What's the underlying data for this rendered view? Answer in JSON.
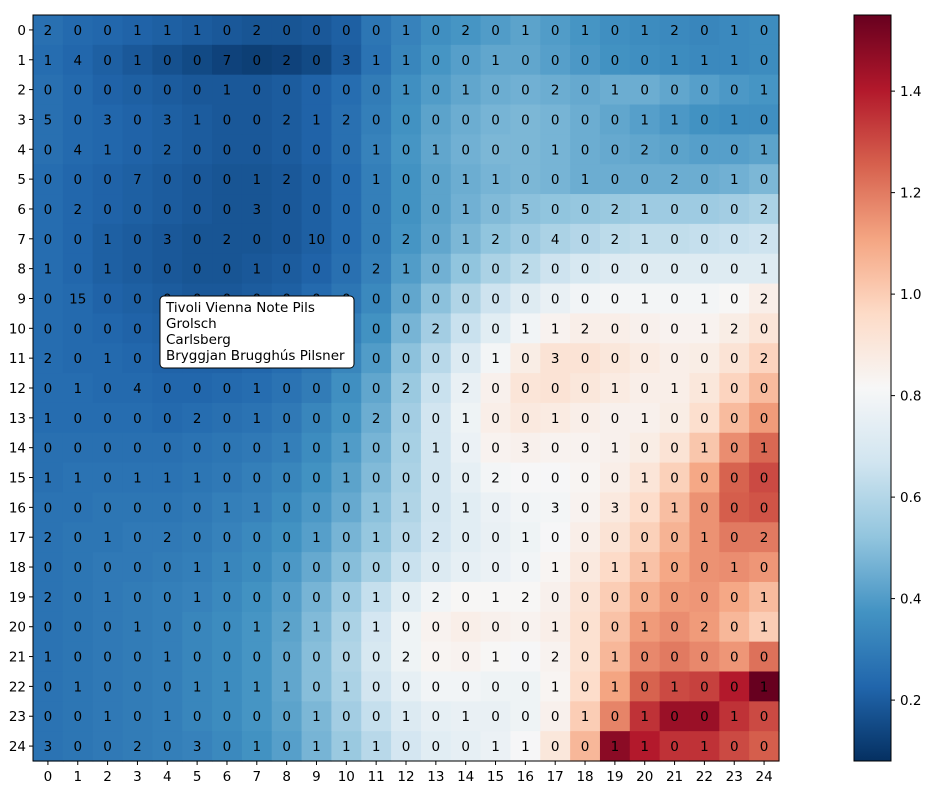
{
  "chart_data": {
    "type": "heatmap",
    "title": "",
    "xlabel": "",
    "ylabel": "",
    "x_ticks": [
      "0",
      "1",
      "2",
      "3",
      "4",
      "5",
      "6",
      "7",
      "8",
      "9",
      "10",
      "11",
      "12",
      "13",
      "14",
      "15",
      "16",
      "17",
      "18",
      "19",
      "20",
      "21",
      "22",
      "23",
      "24"
    ],
    "y_ticks": [
      "0",
      "1",
      "2",
      "3",
      "4",
      "5",
      "6",
      "7",
      "8",
      "9",
      "10",
      "11",
      "12",
      "13",
      "14",
      "15",
      "16",
      "17",
      "18",
      "19",
      "20",
      "21",
      "22",
      "23",
      "24"
    ],
    "colormap": "RdBu_r",
    "colorbar": {
      "vmin": 0.08,
      "vmax": 1.55,
      "ticks": [
        "0.2",
        "0.4",
        "0.6",
        "0.8",
        "1.0",
        "1.2",
        "1.4"
      ],
      "tick_values": [
        0.2,
        0.4,
        0.6,
        0.8,
        1.0,
        1.2,
        1.4
      ]
    },
    "cell_labels": [
      [
        2,
        0,
        0,
        1,
        1,
        1,
        0,
        2,
        0,
        0,
        0,
        0,
        1,
        0,
        2,
        0,
        1,
        0,
        1,
        0,
        1,
        2,
        0,
        1,
        0
      ],
      [
        1,
        4,
        0,
        1,
        0,
        0,
        7,
        0,
        2,
        0,
        3,
        1,
        1,
        0,
        0,
        1,
        0,
        0,
        0,
        0,
        0,
        1,
        1,
        1,
        0
      ],
      [
        0,
        0,
        0,
        0,
        0,
        0,
        1,
        0,
        0,
        0,
        0,
        0,
        1,
        0,
        1,
        0,
        0,
        2,
        0,
        1,
        0,
        0,
        0,
        0,
        1
      ],
      [
        5,
        0,
        3,
        0,
        3,
        1,
        0,
        0,
        2,
        1,
        2,
        0,
        0,
        0,
        0,
        0,
        0,
        0,
        0,
        0,
        1,
        1,
        0,
        1,
        0
      ],
      [
        0,
        4,
        1,
        0,
        2,
        0,
        0,
        0,
        0,
        0,
        0,
        1,
        0,
        1,
        0,
        0,
        0,
        1,
        0,
        0,
        2,
        0,
        0,
        0,
        1
      ],
      [
        0,
        0,
        0,
        7,
        0,
        0,
        0,
        1,
        2,
        0,
        0,
        1,
        0,
        0,
        1,
        1,
        0,
        0,
        1,
        0,
        0,
        2,
        0,
        1,
        0
      ],
      [
        0,
        2,
        0,
        0,
        0,
        0,
        0,
        3,
        0,
        0,
        0,
        0,
        0,
        0,
        1,
        0,
        5,
        0,
        0,
        2,
        1,
        0,
        0,
        0,
        2
      ],
      [
        0,
        0,
        1,
        0,
        3,
        0,
        2,
        0,
        0,
        10,
        0,
        0,
        2,
        0,
        1,
        2,
        0,
        4,
        0,
        2,
        1,
        0,
        0,
        0,
        2
      ],
      [
        1,
        0,
        1,
        0,
        0,
        0,
        0,
        1,
        0,
        0,
        0,
        2,
        1,
        0,
        0,
        0,
        2,
        0,
        0,
        0,
        0,
        0,
        0,
        0,
        1
      ],
      [
        0,
        15,
        0,
        0,
        0,
        0,
        0,
        0,
        0,
        0,
        0,
        0,
        0,
        0,
        0,
        0,
        0,
        0,
        0,
        0,
        1,
        0,
        1,
        0,
        2
      ],
      [
        0,
        0,
        0,
        0,
        0,
        0,
        0,
        0,
        0,
        0,
        0,
        0,
        0,
        2,
        0,
        0,
        1,
        1,
        2,
        0,
        0,
        0,
        1,
        2,
        0
      ],
      [
        2,
        0,
        1,
        0,
        0,
        0,
        0,
        0,
        0,
        0,
        0,
        0,
        0,
        0,
        0,
        1,
        0,
        3,
        0,
        0,
        0,
        0,
        0,
        0,
        2
      ],
      [
        0,
        1,
        0,
        4,
        0,
        0,
        0,
        1,
        0,
        0,
        0,
        0,
        2,
        0,
        2,
        0,
        0,
        0,
        0,
        1,
        0,
        1,
        1,
        0,
        0
      ],
      [
        1,
        0,
        0,
        0,
        0,
        2,
        0,
        1,
        0,
        0,
        0,
        2,
        0,
        0,
        1,
        0,
        0,
        1,
        0,
        0,
        1,
        0,
        0,
        0,
        0
      ],
      [
        0,
        0,
        0,
        0,
        0,
        0,
        0,
        0,
        1,
        0,
        1,
        0,
        0,
        1,
        0,
        0,
        3,
        0,
        0,
        1,
        0,
        0,
        1,
        0,
        1
      ],
      [
        1,
        1,
        0,
        1,
        1,
        1,
        0,
        0,
        0,
        0,
        1,
        0,
        0,
        0,
        0,
        2,
        0,
        0,
        0,
        0,
        1,
        0,
        0,
        0,
        0
      ],
      [
        0,
        0,
        0,
        0,
        0,
        0,
        1,
        1,
        0,
        0,
        0,
        1,
        1,
        0,
        1,
        0,
        0,
        3,
        0,
        3,
        0,
        1,
        0,
        0,
        0
      ],
      [
        2,
        0,
        1,
        0,
        2,
        0,
        0,
        0,
        0,
        1,
        0,
        1,
        0,
        2,
        0,
        0,
        1,
        0,
        0,
        0,
        0,
        0,
        1,
        0,
        2
      ],
      [
        0,
        0,
        0,
        0,
        0,
        1,
        1,
        0,
        0,
        0,
        0,
        0,
        0,
        0,
        0,
        0,
        0,
        1,
        0,
        1,
        1,
        0,
        0,
        1,
        0
      ],
      [
        2,
        0,
        1,
        0,
        0,
        1,
        0,
        0,
        0,
        0,
        0,
        1,
        0,
        2,
        0,
        1,
        2,
        0,
        0,
        0,
        0,
        0,
        0,
        0,
        1
      ],
      [
        0,
        0,
        0,
        1,
        0,
        0,
        0,
        1,
        2,
        1,
        0,
        1,
        0,
        0,
        0,
        0,
        0,
        1,
        0,
        0,
        1,
        0,
        2,
        0,
        1
      ],
      [
        1,
        0,
        0,
        0,
        1,
        0,
        0,
        0,
        0,
        0,
        0,
        0,
        2,
        0,
        0,
        1,
        0,
        2,
        0,
        1,
        0,
        0,
        0,
        0,
        0
      ],
      [
        0,
        1,
        0,
        0,
        0,
        1,
        1,
        1,
        1,
        0,
        1,
        0,
        0,
        0,
        0,
        0,
        0,
        1,
        0,
        1,
        0,
        1,
        0,
        0,
        1
      ],
      [
        0,
        0,
        1,
        0,
        1,
        0,
        0,
        0,
        0,
        1,
        0,
        0,
        1,
        0,
        1,
        0,
        0,
        0,
        1,
        0,
        1,
        0,
        0,
        1,
        0
      ],
      [
        3,
        0,
        0,
        2,
        0,
        3,
        0,
        1,
        0,
        1,
        1,
        1,
        0,
        0,
        0,
        1,
        1,
        0,
        0,
        1,
        1,
        0,
        1,
        0,
        0
      ]
    ],
    "color_values": [
      [
        0.26,
        0.24,
        0.23,
        0.22,
        0.21,
        0.2,
        0.19,
        0.18,
        0.18,
        0.19,
        0.21,
        0.28,
        0.32,
        0.36,
        0.38,
        0.4,
        0.42,
        0.4,
        0.38,
        0.36,
        0.35,
        0.34,
        0.33,
        0.34,
        0.35
      ],
      [
        0.25,
        0.23,
        0.21,
        0.19,
        0.17,
        0.15,
        0.13,
        0.12,
        0.13,
        0.15,
        0.2,
        0.27,
        0.33,
        0.38,
        0.41,
        0.43,
        0.43,
        0.41,
        0.39,
        0.37,
        0.36,
        0.35,
        0.34,
        0.34,
        0.35
      ],
      [
        0.26,
        0.24,
        0.22,
        0.21,
        0.2,
        0.19,
        0.19,
        0.19,
        0.2,
        0.22,
        0.25,
        0.3,
        0.36,
        0.4,
        0.43,
        0.45,
        0.46,
        0.45,
        0.44,
        0.45,
        0.45,
        0.43,
        0.41,
        0.39,
        0.38
      ],
      [
        0.26,
        0.24,
        0.23,
        0.22,
        0.21,
        0.2,
        0.19,
        0.19,
        0.2,
        0.22,
        0.26,
        0.31,
        0.37,
        0.42,
        0.45,
        0.47,
        0.48,
        0.47,
        0.45,
        0.43,
        0.41,
        0.39,
        0.37,
        0.36,
        0.36
      ],
      [
        0.26,
        0.24,
        0.23,
        0.22,
        0.21,
        0.2,
        0.19,
        0.19,
        0.2,
        0.22,
        0.26,
        0.32,
        0.38,
        0.43,
        0.46,
        0.48,
        0.48,
        0.47,
        0.45,
        0.44,
        0.43,
        0.42,
        0.41,
        0.41,
        0.42
      ],
      [
        0.25,
        0.23,
        0.22,
        0.21,
        0.2,
        0.19,
        0.18,
        0.18,
        0.19,
        0.21,
        0.25,
        0.31,
        0.37,
        0.42,
        0.45,
        0.47,
        0.48,
        0.47,
        0.45,
        0.45,
        0.45,
        0.45,
        0.45,
        0.46,
        0.48
      ],
      [
        0.25,
        0.23,
        0.22,
        0.21,
        0.2,
        0.19,
        0.18,
        0.18,
        0.19,
        0.21,
        0.25,
        0.31,
        0.37,
        0.42,
        0.46,
        0.49,
        0.51,
        0.52,
        0.53,
        0.54,
        0.55,
        0.55,
        0.55,
        0.56,
        0.58
      ],
      [
        0.25,
        0.23,
        0.21,
        0.2,
        0.19,
        0.18,
        0.18,
        0.18,
        0.19,
        0.21,
        0.25,
        0.31,
        0.38,
        0.43,
        0.48,
        0.52,
        0.55,
        0.58,
        0.6,
        0.62,
        0.63,
        0.63,
        0.64,
        0.65,
        0.66
      ],
      [
        0.25,
        0.23,
        0.21,
        0.2,
        0.19,
        0.18,
        0.18,
        0.19,
        0.2,
        0.22,
        0.26,
        0.32,
        0.4,
        0.46,
        0.52,
        0.58,
        0.62,
        0.66,
        0.69,
        0.71,
        0.72,
        0.72,
        0.72,
        0.72,
        0.72
      ],
      [
        0.25,
        0.24,
        0.22,
        0.21,
        0.2,
        0.19,
        0.19,
        0.2,
        0.21,
        0.24,
        0.28,
        0.34,
        0.43,
        0.51,
        0.59,
        0.66,
        0.72,
        0.76,
        0.79,
        0.8,
        0.8,
        0.8,
        0.8,
        0.82,
        0.86
      ],
      [
        0.25,
        0.24,
        0.23,
        0.22,
        0.21,
        0.2,
        0.2,
        0.21,
        0.23,
        0.26,
        0.31,
        0.37,
        0.47,
        0.56,
        0.65,
        0.73,
        0.79,
        0.84,
        0.86,
        0.86,
        0.85,
        0.84,
        0.84,
        0.87,
        0.91
      ],
      [
        0.25,
        0.24,
        0.24,
        0.23,
        0.22,
        0.22,
        0.22,
        0.23,
        0.25,
        0.28,
        0.33,
        0.4,
        0.51,
        0.61,
        0.71,
        0.8,
        0.87,
        0.92,
        0.92,
        0.9,
        0.88,
        0.86,
        0.87,
        0.92,
        0.98
      ],
      [
        0.25,
        0.25,
        0.24,
        0.24,
        0.23,
        0.23,
        0.24,
        0.25,
        0.27,
        0.3,
        0.36,
        0.43,
        0.54,
        0.65,
        0.76,
        0.85,
        0.91,
        0.92,
        0.9,
        0.88,
        0.86,
        0.86,
        0.9,
        0.98,
        1.05
      ],
      [
        0.25,
        0.25,
        0.25,
        0.25,
        0.24,
        0.25,
        0.26,
        0.27,
        0.29,
        0.33,
        0.38,
        0.45,
        0.56,
        0.67,
        0.78,
        0.86,
        0.89,
        0.88,
        0.86,
        0.85,
        0.85,
        0.87,
        0.94,
        1.05,
        1.13
      ],
      [
        0.26,
        0.26,
        0.26,
        0.26,
        0.26,
        0.27,
        0.28,
        0.29,
        0.31,
        0.35,
        0.4,
        0.47,
        0.57,
        0.67,
        0.77,
        0.84,
        0.85,
        0.84,
        0.84,
        0.85,
        0.87,
        0.92,
        1.02,
        1.16,
        1.24
      ],
      [
        0.26,
        0.27,
        0.27,
        0.27,
        0.27,
        0.28,
        0.29,
        0.31,
        0.33,
        0.37,
        0.42,
        0.49,
        0.58,
        0.67,
        0.75,
        0.8,
        0.81,
        0.81,
        0.83,
        0.86,
        0.91,
        0.99,
        1.1,
        1.25,
        1.3
      ],
      [
        0.27,
        0.27,
        0.28,
        0.28,
        0.28,
        0.29,
        0.31,
        0.32,
        0.35,
        0.39,
        0.44,
        0.51,
        0.59,
        0.67,
        0.73,
        0.77,
        0.79,
        0.8,
        0.84,
        0.89,
        0.95,
        1.04,
        1.15,
        1.26,
        1.28
      ],
      [
        0.27,
        0.28,
        0.28,
        0.29,
        0.29,
        0.3,
        0.32,
        0.34,
        0.37,
        0.41,
        0.47,
        0.53,
        0.61,
        0.68,
        0.73,
        0.76,
        0.78,
        0.81,
        0.86,
        0.92,
        0.99,
        1.07,
        1.15,
        1.2,
        1.2
      ],
      [
        0.27,
        0.28,
        0.29,
        0.29,
        0.3,
        0.31,
        0.33,
        0.35,
        0.39,
        0.44,
        0.5,
        0.57,
        0.65,
        0.71,
        0.75,
        0.77,
        0.79,
        0.83,
        0.89,
        0.96,
        1.03,
        1.1,
        1.15,
        1.16,
        1.14
      ],
      [
        0.27,
        0.28,
        0.29,
        0.3,
        0.31,
        0.32,
        0.34,
        0.37,
        0.41,
        0.47,
        0.55,
        0.64,
        0.73,
        0.79,
        0.82,
        0.82,
        0.82,
        0.85,
        0.92,
        1.0,
        1.08,
        1.13,
        1.14,
        1.1,
        1.05
      ],
      [
        0.27,
        0.28,
        0.29,
        0.3,
        0.31,
        0.33,
        0.35,
        0.38,
        0.42,
        0.49,
        0.58,
        0.68,
        0.78,
        0.84,
        0.86,
        0.85,
        0.84,
        0.86,
        0.93,
        1.03,
        1.13,
        1.16,
        1.13,
        1.06,
        1.0
      ],
      [
        0.27,
        0.28,
        0.29,
        0.3,
        0.31,
        0.33,
        0.35,
        0.38,
        0.43,
        0.5,
        0.59,
        0.69,
        0.78,
        0.83,
        0.84,
        0.82,
        0.81,
        0.84,
        0.93,
        1.06,
        1.17,
        1.2,
        1.17,
        1.14,
        1.22
      ],
      [
        0.27,
        0.28,
        0.29,
        0.3,
        0.31,
        0.33,
        0.35,
        0.38,
        0.43,
        0.5,
        0.58,
        0.67,
        0.75,
        0.79,
        0.79,
        0.78,
        0.78,
        0.83,
        0.95,
        1.11,
        1.25,
        1.3,
        1.32,
        1.4,
        1.55
      ],
      [
        0.27,
        0.28,
        0.29,
        0.3,
        0.31,
        0.33,
        0.35,
        0.38,
        0.42,
        0.48,
        0.56,
        0.64,
        0.71,
        0.75,
        0.76,
        0.76,
        0.78,
        0.85,
        1.0,
        1.18,
        1.35,
        1.45,
        1.45,
        1.35,
        1.3
      ],
      [
        0.27,
        0.28,
        0.29,
        0.3,
        0.31,
        0.32,
        0.34,
        0.37,
        0.41,
        0.47,
        0.54,
        0.61,
        0.68,
        0.73,
        0.75,
        0.77,
        0.81,
        0.9,
        1.06,
        1.48,
        1.4,
        1.35,
        1.35,
        1.3,
        1.26
      ]
    ],
    "legend": {
      "entries": [
        "Tivoli Vienna Note Pils",
        "Grolsch",
        "Carlsberg",
        "Bryggjan Brugghús Pilsner"
      ],
      "placement": "upper-left-center"
    },
    "grid": false
  }
}
